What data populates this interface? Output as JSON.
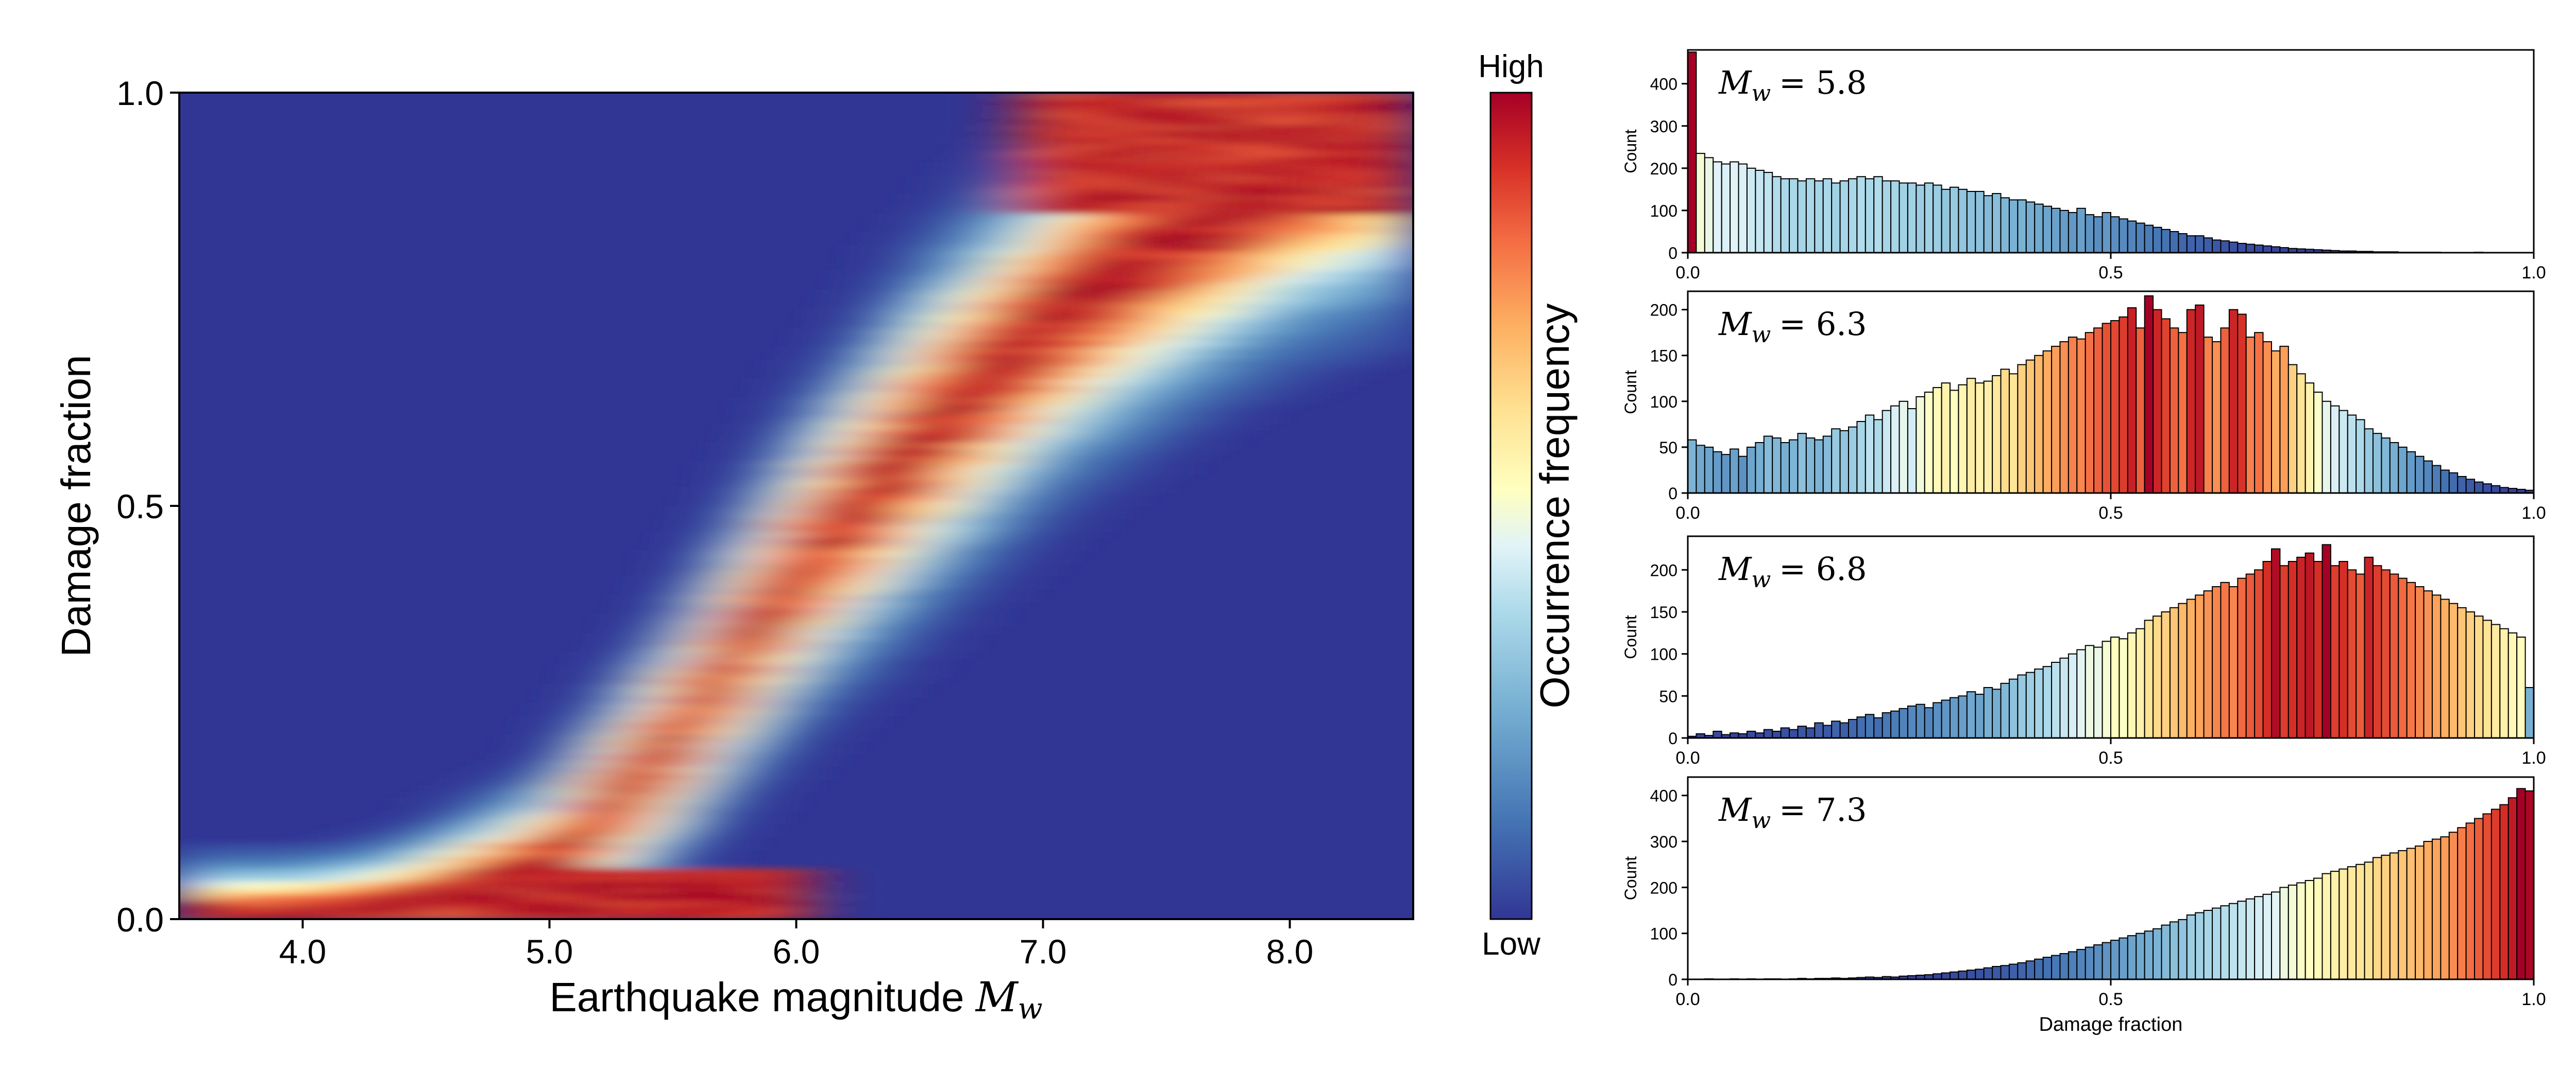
{
  "chart_data": [
    {
      "type": "heatmap",
      "xlabel": "Earthquake magnitude ",
      "xlabel_symbol": "M",
      "xlabel_subscript": "w",
      "ylabel": "Damage fraction",
      "xlim": [
        3.5,
        8.5
      ],
      "ylim": [
        0.0,
        1.0
      ],
      "xticks": [
        "4.0",
        "5.0",
        "6.0",
        "7.0",
        "8.0"
      ],
      "yticks": [
        "0.0",
        "0.5",
        "1.0"
      ],
      "colorbar": {
        "label": "Occurrence frequency",
        "top_label": "High",
        "bottom_label": "Low"
      },
      "ridge": {
        "description": "high-frequency band of damage fraction vs magnitude",
        "magnitude": [
          3.5,
          4.0,
          4.5,
          5.0,
          5.5,
          6.0,
          6.5,
          7.0,
          7.5,
          8.0,
          8.5
        ],
        "damage_fraction_peak": [
          0.0,
          0.0,
          0.02,
          0.06,
          0.22,
          0.42,
          0.58,
          0.72,
          0.82,
          0.9,
          0.95
        ]
      }
    },
    {
      "type": "histogram",
      "label": "M_w = 5.8",
      "label_var": "M",
      "label_sub": "w",
      "label_value": "= 5.8",
      "ylabel": "Count",
      "xlim": [
        0.0,
        1.0
      ],
      "ylim": [
        0,
        480
      ],
      "xticks": [
        "0.0",
        "0.5",
        "1.0"
      ],
      "yticks": [
        "0",
        "100",
        "200",
        "300",
        "400"
      ],
      "values": [
        475,
        235,
        225,
        215,
        210,
        215,
        210,
        200,
        195,
        190,
        180,
        175,
        175,
        170,
        175,
        170,
        175,
        165,
        170,
        175,
        180,
        175,
        180,
        170,
        170,
        165,
        165,
        160,
        165,
        160,
        150,
        155,
        150,
        145,
        145,
        135,
        140,
        130,
        125,
        125,
        120,
        115,
        110,
        105,
        100,
        95,
        105,
        90,
        85,
        95,
        85,
        80,
        75,
        70,
        65,
        60,
        55,
        50,
        45,
        40,
        40,
        35,
        30,
        28,
        25,
        22,
        20,
        18,
        16,
        14,
        12,
        10,
        9,
        8,
        7,
        6,
        5,
        4,
        4,
        3,
        3,
        2,
        2,
        2,
        1,
        1,
        1,
        1,
        1,
        0,
        0,
        0,
        0,
        1,
        0,
        0,
        0,
        0,
        0,
        0
      ]
    },
    {
      "type": "histogram",
      "label": "M_w = 6.3",
      "label_var": "M",
      "label_sub": "w",
      "label_value": "= 6.3",
      "ylabel": "Count",
      "xlim": [
        0.0,
        1.0
      ],
      "ylim": [
        0,
        220
      ],
      "xticks": [
        "0.0",
        "0.5",
        "1.0"
      ],
      "yticks": [
        "0",
        "50",
        "100",
        "150",
        "200"
      ],
      "values": [
        58,
        52,
        50,
        45,
        42,
        48,
        40,
        50,
        55,
        62,
        60,
        55,
        58,
        65,
        60,
        58,
        62,
        70,
        68,
        72,
        78,
        85,
        80,
        90,
        95,
        100,
        92,
        105,
        110,
        115,
        120,
        112,
        118,
        125,
        120,
        122,
        128,
        135,
        130,
        140,
        145,
        150,
        155,
        160,
        165,
        170,
        168,
        175,
        180,
        185,
        188,
        192,
        202,
        180,
        215,
        200,
        190,
        180,
        175,
        200,
        205,
        170,
        165,
        180,
        200,
        195,
        170,
        175,
        165,
        155,
        160,
        140,
        130,
        120,
        110,
        100,
        95,
        90,
        85,
        80,
        70,
        65,
        60,
        55,
        50,
        45,
        40,
        35,
        30,
        25,
        22,
        18,
        15,
        12,
        10,
        8,
        6,
        5,
        4,
        3
      ]
    },
    {
      "type": "histogram",
      "label": "M_w = 6.8",
      "label_var": "M",
      "label_sub": "w",
      "label_value": "= 6.8",
      "ylabel": "Count",
      "xlim": [
        0.0,
        1.0
      ],
      "ylim": [
        0,
        240
      ],
      "xticks": [
        "0.0",
        "0.5",
        "1.0"
      ],
      "yticks": [
        "0",
        "50",
        "100",
        "150",
        "200"
      ],
      "values": [
        2,
        5,
        3,
        8,
        4,
        6,
        5,
        8,
        6,
        10,
        8,
        12,
        10,
        14,
        12,
        18,
        15,
        20,
        18,
        22,
        25,
        28,
        24,
        30,
        32,
        35,
        38,
        40,
        36,
        42,
        45,
        48,
        50,
        55,
        52,
        60,
        58,
        65,
        70,
        75,
        78,
        82,
        85,
        90,
        95,
        100,
        105,
        110,
        108,
        115,
        120,
        118,
        125,
        130,
        140,
        145,
        150,
        155,
        160,
        165,
        170,
        175,
        180,
        185,
        180,
        190,
        195,
        200,
        210,
        225,
        205,
        210,
        215,
        220,
        210,
        230,
        205,
        210,
        200,
        195,
        215,
        205,
        200,
        195,
        190,
        185,
        180,
        175,
        170,
        165,
        160,
        155,
        150,
        145,
        140,
        135,
        130,
        125,
        120,
        60
      ]
    },
    {
      "type": "histogram",
      "label": "M_w = 7.3",
      "label_var": "M",
      "label_sub": "w",
      "label_value": "= 7.3",
      "ylabel": "Count",
      "xlabel": "Damage fraction",
      "xlim": [
        0.0,
        1.0
      ],
      "ylim": [
        0,
        440
      ],
      "xticks": [
        "0.0",
        "0.5",
        "1.0"
      ],
      "yticks": [
        "0",
        "100",
        "200",
        "300",
        "400"
      ],
      "values": [
        0,
        0,
        1,
        0,
        0,
        1,
        0,
        1,
        0,
        1,
        1,
        0,
        1,
        2,
        1,
        2,
        2,
        3,
        2,
        3,
        4,
        5,
        4,
        6,
        5,
        7,
        8,
        9,
        10,
        12,
        14,
        16,
        18,
        20,
        22,
        25,
        28,
        30,
        33,
        36,
        40,
        44,
        48,
        52,
        56,
        60,
        65,
        70,
        75,
        80,
        85,
        90,
        95,
        100,
        105,
        110,
        118,
        125,
        130,
        140,
        145,
        150,
        155,
        160,
        165,
        170,
        175,
        180,
        185,
        190,
        200,
        205,
        210,
        215,
        220,
        230,
        235,
        240,
        245,
        250,
        255,
        265,
        270,
        275,
        280,
        285,
        290,
        300,
        305,
        310,
        320,
        330,
        340,
        350,
        360,
        370,
        380,
        395,
        415,
        410
      ]
    }
  ],
  "colors": {
    "low": "#313695",
    "mid_low": "#74add1",
    "mid": "#ffffbf",
    "mid_high": "#f46d43",
    "high": "#a50026"
  }
}
